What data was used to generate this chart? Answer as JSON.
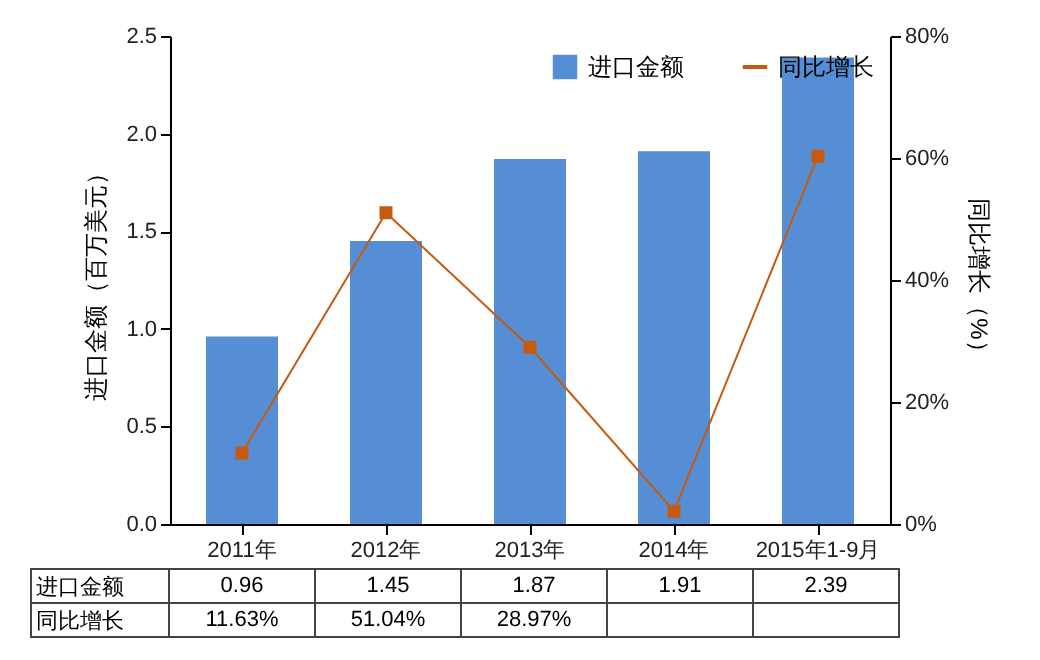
{
  "chart_data": {
    "type": "bar",
    "categories": [
      "2011年",
      "2012年",
      "2013年",
      "2014年",
      "2015年1-9月"
    ],
    "series": [
      {
        "name": "进口金额",
        "color": "#558ed5",
        "values": [
          0.96,
          1.45,
          1.87,
          1.91,
          2.39
        ],
        "value_labels": [
          "0.96",
          "1.45",
          "1.87",
          "1.91",
          "2.39"
        ]
      },
      {
        "name": "同比增长",
        "type": "line",
        "axis": "y2",
        "color": "#c55a11",
        "values": [
          11.63,
          51.04,
          28.97,
          2.1,
          60.3
        ],
        "value_labels": [
          "11.63%",
          "51.04%",
          "28.97%",
          null,
          null
        ]
      }
    ],
    "ylabel": "进口金额（百万美元）",
    "y2label": "同比增长（%）",
    "ylim": [
      0,
      2.5
    ],
    "yticks": [
      {
        "value": 0,
        "label": "0.0"
      },
      {
        "value": 0.5,
        "label": "0.5"
      },
      {
        "value": 1,
        "label": "1.0"
      },
      {
        "value": 1.5,
        "label": "1.5"
      },
      {
        "value": 2,
        "label": "2.0"
      },
      {
        "value": 2.5,
        "label": "2.5"
      }
    ],
    "y2lim": [
      0,
      80
    ],
    "y2ticks": [
      {
        "value": 0,
        "label": "0%"
      },
      {
        "value": 20,
        "label": "20%"
      },
      {
        "value": 40,
        "label": "40%"
      },
      {
        "value": 60,
        "label": "60%"
      },
      {
        "value": 80,
        "label": "80%"
      }
    ],
    "grid": false,
    "legend": "top right",
    "marker": "square",
    "line_style": "solid"
  }
}
